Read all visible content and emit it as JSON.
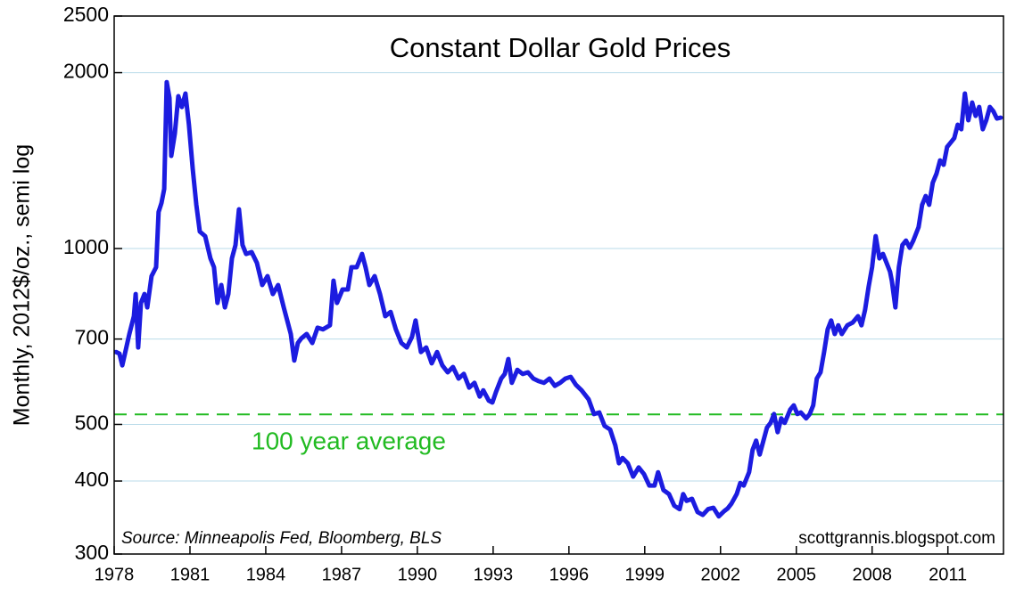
{
  "chart_data": {
    "type": "line",
    "title": "Constant Dollar Gold Prices",
    "y_label": "Monthly, 2012$/oz., semi log",
    "source": "Source: Minneapolis Fed, Bloomberg, BLS",
    "watermark": "scottgrannis.blogspot.com",
    "log_scale": true,
    "grid": true,
    "xlim": [
      1978,
      2013.2
    ],
    "xticks": [
      1978,
      1981,
      1984,
      1987,
      1990,
      1993,
      1996,
      1999,
      2002,
      2005,
      2008,
      2011
    ],
    "ylim": [
      300,
      2500
    ],
    "yticks": [
      300,
      400,
      500,
      700,
      1000,
      2000,
      2500
    ],
    "reference_lines": [
      {
        "value": 520,
        "label": "100 year average",
        "color": "#22bb22"
      }
    ],
    "x": [
      1978.07,
      1978.21,
      1978.32,
      1978.42,
      1978.6,
      1978.78,
      1978.85,
      1978.95,
      1979.06,
      1979.2,
      1979.31,
      1979.48,
      1979.66,
      1979.76,
      1979.87,
      1979.98,
      1980.08,
      1980.19,
      1980.26,
      1980.4,
      1980.54,
      1980.68,
      1980.82,
      1980.96,
      1981.11,
      1981.25,
      1981.39,
      1981.6,
      1981.81,
      1981.95,
      1982.09,
      1982.24,
      1982.38,
      1982.52,
      1982.66,
      1982.8,
      1982.94,
      1983.08,
      1983.22,
      1983.44,
      1983.65,
      1983.86,
      1984.07,
      1984.28,
      1984.49,
      1984.71,
      1984.85,
      1984.99,
      1985.13,
      1985.27,
      1985.41,
      1985.62,
      1985.84,
      1986.05,
      1986.26,
      1986.54,
      1986.68,
      1986.82,
      1987.04,
      1987.25,
      1987.39,
      1987.6,
      1987.81,
      1987.95,
      1988.1,
      1988.31,
      1988.52,
      1988.73,
      1988.94,
      1989.15,
      1989.37,
      1989.58,
      1989.79,
      1989.93,
      1990.14,
      1990.35,
      1990.57,
      1990.78,
      1990.99,
      1991.2,
      1991.41,
      1991.63,
      1991.84,
      1992.05,
      1992.26,
      1992.47,
      1992.61,
      1992.83,
      1992.97,
      1993.11,
      1993.32,
      1993.46,
      1993.6,
      1993.74,
      1993.96,
      1994.17,
      1994.38,
      1994.59,
      1994.8,
      1995.01,
      1995.23,
      1995.44,
      1995.65,
      1995.86,
      1996.07,
      1996.28,
      1996.5,
      1996.78,
      1996.99,
      1997.2,
      1997.41,
      1997.63,
      1997.84,
      1997.98,
      1998.12,
      1998.33,
      1998.54,
      1998.76,
      1998.97,
      1999.18,
      1999.39,
      1999.53,
      1999.74,
      1999.96,
      2000.17,
      2000.38,
      2000.52,
      2000.66,
      2000.87,
      2001.09,
      2001.3,
      2001.51,
      2001.72,
      2001.93,
      2002.14,
      2002.28,
      2002.43,
      2002.64,
      2002.78,
      2002.92,
      2003.13,
      2003.27,
      2003.41,
      2003.55,
      2003.7,
      2003.84,
      2003.98,
      2004.12,
      2004.26,
      2004.4,
      2004.54,
      2004.76,
      2004.9,
      2005.04,
      2005.18,
      2005.39,
      2005.53,
      2005.67,
      2005.81,
      2005.96,
      2006.1,
      2006.24,
      2006.38,
      2006.52,
      2006.66,
      2006.8,
      2007.02,
      2007.23,
      2007.44,
      2007.58,
      2007.72,
      2007.86,
      2008.0,
      2008.14,
      2008.29,
      2008.43,
      2008.57,
      2008.71,
      2008.78,
      2008.92,
      2009.06,
      2009.2,
      2009.34,
      2009.49,
      2009.63,
      2009.84,
      2009.98,
      2010.12,
      2010.26,
      2010.4,
      2010.55,
      2010.69,
      2010.83,
      2010.97,
      2011.11,
      2011.25,
      2011.39,
      2011.53,
      2011.67,
      2011.81,
      2011.96,
      2012.1,
      2012.24,
      2012.38,
      2012.52,
      2012.66,
      2012.8,
      2012.94,
      2013.09
    ],
    "series": [
      {
        "color": "#1c1ce0",
        "values": [
          665,
          661,
          631,
          659,
          714,
          766,
          836,
          677,
          807,
          836,
          793,
          897,
          929,
          1155,
          1196,
          1265,
          1927,
          1810,
          1441,
          1573,
          1823,
          1747,
          1842,
          1629,
          1367,
          1188,
          1069,
          1050,
          962,
          929,
          807,
          866,
          793,
          836,
          962,
          1014,
          1167,
          1014,
          979,
          986,
          945,
          866,
          897,
          836,
          866,
          793,
          753,
          714,
          643,
          689,
          702,
          714,
          689,
          732,
          727,
          739,
          881,
          807,
          851,
          851,
          929,
          929,
          979,
          929,
          866,
          897,
          836,
          766,
          779,
          727,
          689,
          677,
          706,
          753,
          665,
          677,
          636,
          665,
          631,
          614,
          627,
          599,
          610,
          578,
          589,
          558,
          572,
          549,
          545,
          568,
          599,
          610,
          647,
          589,
          620,
          610,
          614,
          599,
          593,
          589,
          599,
          582,
          589,
          599,
          603,
          584,
          572,
          552,
          521,
          524,
          497,
          490,
          460,
          429,
          438,
          429,
          407,
          422,
          411,
          393,
          393,
          414,
          386,
          380,
          363,
          358,
          380,
          370,
          373,
          354,
          350,
          358,
          360,
          348,
          355,
          359,
          366,
          380,
          397,
          393,
          414,
          452,
          469,
          444,
          469,
          494,
          503,
          521,
          485,
          512,
          503,
          530,
          539,
          521,
          524,
          512,
          521,
          539,
          599,
          614,
          665,
          727,
          753,
          714,
          739,
          714,
          739,
          747,
          766,
          739,
          785,
          860,
          929,
          1050,
          962,
          979,
          945,
          913,
          881,
          793,
          929,
          1014,
          1032,
          1003,
          1032,
          1088,
          1188,
          1230,
          1188,
          1296,
          1343,
          1415,
          1391,
          1492,
          1518,
          1545,
          1629,
          1600,
          1842,
          1658,
          1778,
          1687,
          1747,
          1600,
          1658,
          1747,
          1717,
          1669,
          1675
        ]
      }
    ]
  }
}
